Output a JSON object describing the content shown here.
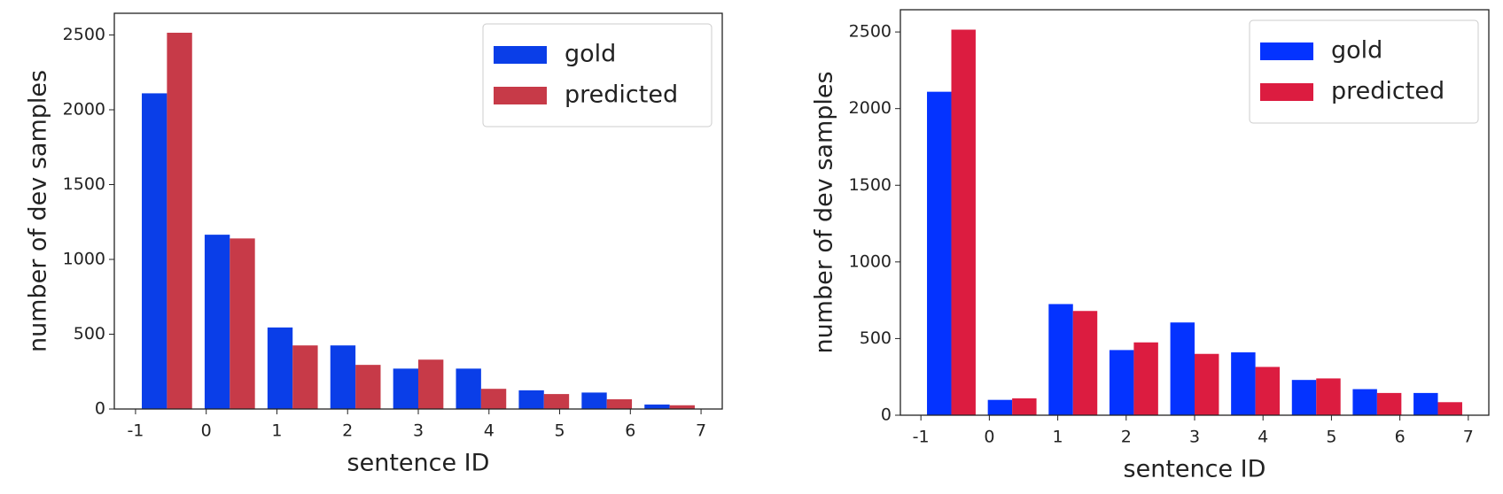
{
  "chart_data": [
    {
      "type": "histogram",
      "xlabel": "sentence ID",
      "ylabel": "number of dev samples",
      "bins": [
        -1,
        -0.111,
        0.778,
        1.667,
        2.556,
        3.444,
        4.333,
        5.222,
        6.111,
        7
      ],
      "series": [
        {
          "name": "gold",
          "color": "#0a3ee8",
          "values": [
            2110,
            1165,
            545,
            425,
            270,
            270,
            125,
            110,
            30
          ]
        },
        {
          "name": "predicted",
          "color": "#c73a48",
          "values": [
            2515,
            1140,
            425,
            295,
            330,
            135,
            100,
            65,
            25
          ]
        }
      ],
      "xlim": [
        -1.3,
        7.3
      ],
      "xticks": [
        -1,
        0,
        1,
        2,
        3,
        4,
        5,
        6,
        7
      ],
      "ylim": [
        0,
        2645
      ],
      "yticks": [
        0,
        500,
        1000,
        1500,
        2000,
        2500
      ],
      "legend": "upper right"
    },
    {
      "type": "histogram",
      "xlabel": "sentence ID",
      "ylabel": "number of dev samples",
      "bins": [
        -1,
        -0.111,
        0.778,
        1.667,
        2.556,
        3.444,
        4.333,
        5.222,
        6.111,
        7
      ],
      "series": [
        {
          "name": "gold",
          "color": "#0433ff",
          "values": [
            2110,
            100,
            725,
            425,
            605,
            410,
            230,
            170,
            145
          ]
        },
        {
          "name": "predicted",
          "color": "#dc1c40",
          "values": [
            2515,
            110,
            680,
            475,
            400,
            315,
            240,
            145,
            85
          ]
        }
      ],
      "xlim": [
        -1.3,
        7.3
      ],
      "xticks": [
        -1,
        0,
        1,
        2,
        3,
        4,
        5,
        6,
        7
      ],
      "ylim": [
        0,
        2645
      ],
      "yticks": [
        0,
        500,
        1000,
        1500,
        2000,
        2500
      ],
      "legend": "upper right"
    }
  ]
}
